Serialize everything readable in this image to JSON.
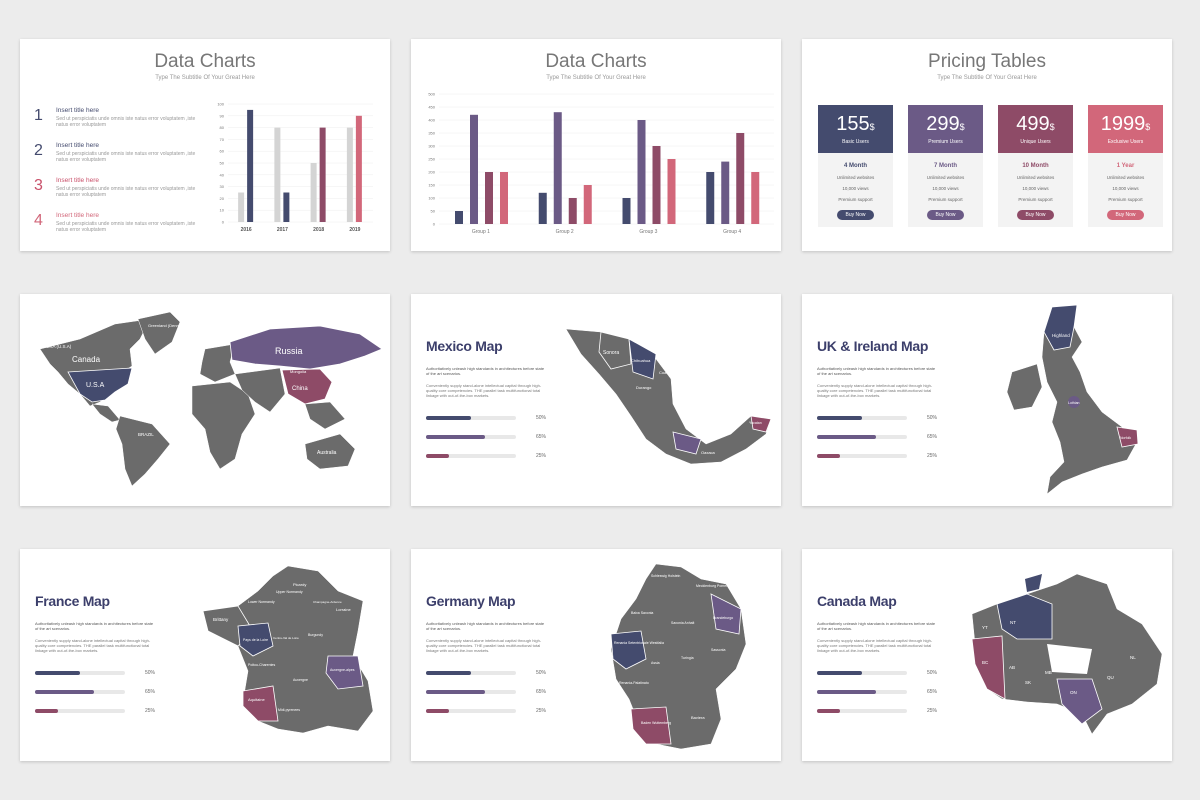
{
  "colors": {
    "navy": "#444b6e",
    "purple": "#6b5a86",
    "plum": "#8e4b67",
    "pink": "#d2677a",
    "grey": "#6b6b6b",
    "light": "#d4d4d4"
  },
  "slide1": {
    "title": "Data Charts",
    "subtitle": "Type The Subtitle Of Your Great Here",
    "items": [
      {
        "num": "1",
        "title": "Insert title here",
        "desc": "Sed ut perspiciatis unde omnis iste natus error voluptatem ,iste natus error voluptatem"
      },
      {
        "num": "2",
        "title": "Insert title here",
        "desc": "Sed ut perspiciatis unde omnis iste natus error voluptatem ,iste natus error voluptatem"
      },
      {
        "num": "3",
        "title": "Insert title here",
        "desc": "Sed ut perspiciatis unde omnis iste natus error voluptatem ,iste natus error voluptatem"
      },
      {
        "num": "4",
        "title": "Insert title here",
        "desc": "Sed ut perspiciatis unde omnis iste natus error voluptatem ,iste natus error voluptatem"
      }
    ]
  },
  "slide2": {
    "title": "Data Charts",
    "subtitle": "Type The Subtitle Of Your Great Here"
  },
  "slide3": {
    "title": "Pricing Tables",
    "subtitle": "Type The Subtitle Of Your Great Here",
    "plans": [
      {
        "price": "155",
        "currency": "$",
        "label": "Basic Users",
        "period": "4 Month",
        "f1": "Unlimited websites",
        "f2": "10,000 views",
        "f3": "Premium support",
        "button": "Buy Now",
        "color": "#444b6e"
      },
      {
        "price": "299",
        "currency": "$",
        "label": "Premium Users",
        "period": "7 Month",
        "f1": "Unlimited websites",
        "f2": "10,000 views",
        "f3": "Premium support",
        "button": "Buy Now",
        "color": "#6b5a86"
      },
      {
        "price": "499",
        "currency": "$",
        "label": "Unique Users",
        "period": "10 Month",
        "f1": "Unlimited websites",
        "f2": "10,000 views",
        "f3": "Premium support",
        "button": "Buy Now",
        "color": "#8e4b67"
      },
      {
        "price": "1999",
        "currency": "$",
        "label": "Exclusive Users",
        "period": "1 Year",
        "f1": "Unlimited websites",
        "f2": "10,000 views",
        "f3": "Premium support",
        "button": "Buy Now",
        "color": "#d2677a"
      }
    ]
  },
  "world": {
    "labels": [
      "Greenland (Denmark)",
      "ALASKA (U.S.A)",
      "Canada",
      "U.S.A",
      "BRAZIL",
      "Russia",
      "Mongolia",
      "China",
      "Australia"
    ]
  },
  "maps": {
    "desc1": "Authoritatively unleash high standards in architectures before state of the art scenarios.",
    "desc2": "Conveniently supply stand-alone intellectual capital through high-quality core competencies. THE parallel task multifunctional total linkage with out-of-the-box markets.",
    "bars": [
      {
        "value": 50,
        "label": "50%",
        "color": "#444b6e"
      },
      {
        "value": 65,
        "label": "65%",
        "color": "#6b5a86"
      },
      {
        "value": 25,
        "label": "25%",
        "color": "#8e4b67"
      }
    ],
    "mexico": {
      "title": "Mexico Map",
      "labels": [
        "Sonora",
        "Chihuahua",
        "Coahuila",
        "Durango",
        "Oaxaca",
        "Yucatan"
      ]
    },
    "uk": {
      "title": "UK & Ireland Map",
      "labels": [
        "Highland",
        "Norfolk",
        "Lothian"
      ]
    },
    "france": {
      "title": "France Map",
      "labels": [
        "Picardy",
        "Lorraine",
        "Brittany",
        "Lower Normandy",
        "Upper Normandy",
        "Champagne-Ardenne",
        "Pays de la Loire",
        "Burgundy",
        "Centre-Val de Loire",
        "Auvergne-alpes",
        "Poitou-Charentes",
        "Aquitaine",
        "Auvergne",
        "Midi-pyrenees"
      ]
    },
    "germany": {
      "title": "Germany Map",
      "labels": [
        "Schleswig Holstein",
        "Mecklenburg Pomerania Anterior",
        "Baixa Saxonia",
        "Renania Setentrionale Westfalia",
        "Saxonia Anhalt",
        "Brandeburgo",
        "Assia",
        "Turingia",
        "Sassonia",
        "Renania-Palatinato",
        "Baden Wuttemberg",
        "Baviera"
      ]
    },
    "canada": {
      "title": "Canada Map",
      "labels": [
        "YT",
        "NT",
        "BC",
        "AB",
        "SK",
        "MB",
        "ON",
        "QU",
        "NL"
      ]
    }
  },
  "chart_data": [
    {
      "type": "bar",
      "categories": [
        "2016",
        "2017",
        "2018",
        "2019"
      ],
      "ylim": [
        0,
        100
      ],
      "series": [
        {
          "values": [
            25,
            80,
            50,
            80
          ]
        },
        {
          "values": [
            95,
            25,
            80,
            90
          ]
        }
      ],
      "colors": [
        [
          "#d4d4d4",
          "#444b6e"
        ],
        [
          "#d4d4d4",
          "#444b6e"
        ],
        [
          "#d4d4d4",
          "#8e4b67"
        ],
        [
          "#d4d4d4",
          "#d2677a"
        ]
      ]
    },
    {
      "type": "bar",
      "categories": [
        "Group 1",
        "Group 2",
        "Group 3",
        "Group 4"
      ],
      "ylim": [
        0,
        500
      ],
      "series": [
        {
          "values": [
            50,
            120,
            100,
            200
          ]
        },
        {
          "values": [
            420,
            430,
            400,
            240
          ]
        },
        {
          "values": [
            200,
            100,
            300,
            350
          ]
        },
        {
          "values": [
            200,
            150,
            250,
            200
          ]
        }
      ],
      "colors": [
        "#444b6e",
        "#6b5a86",
        "#8e4b67",
        "#d2677a"
      ]
    }
  ]
}
